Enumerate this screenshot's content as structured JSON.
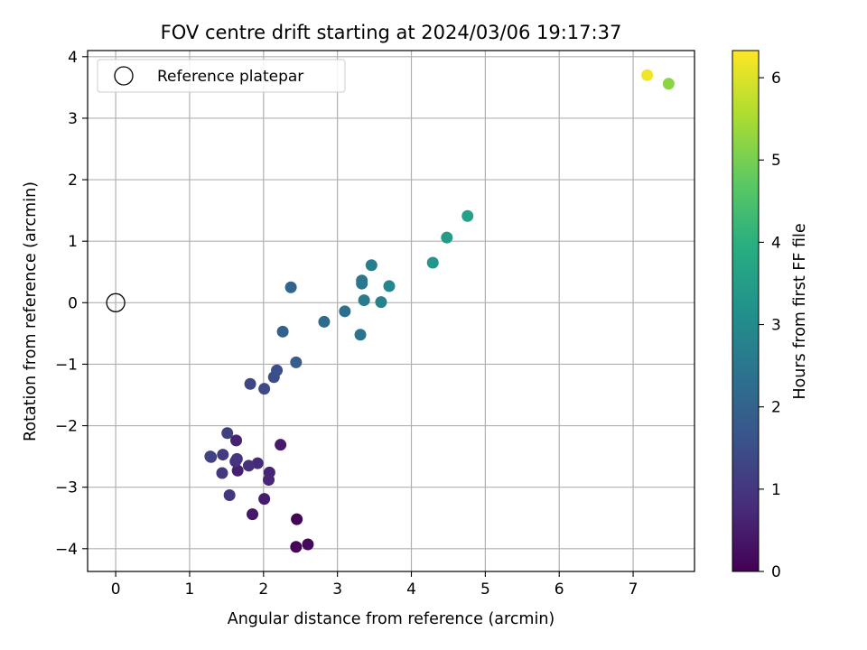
{
  "chart_data": {
    "type": "scatter",
    "title": "FOV centre drift starting at 2024/03/06 19:17:37",
    "xlabel": "Angular distance from reference (arcmin)",
    "ylabel": "Rotation from reference (arcmin)",
    "xlim": [
      -0.38,
      7.83
    ],
    "ylim": [
      -4.37,
      4.1
    ],
    "xticks": [
      0,
      1,
      2,
      3,
      4,
      5,
      6,
      7
    ],
    "yticks": [
      -4,
      -3,
      -2,
      -1,
      0,
      1,
      2,
      3,
      4
    ],
    "grid": true,
    "legend": {
      "placement": "top-left",
      "entries": [
        {
          "label": "Reference platepar",
          "marker": "hollow-circle",
          "color": "#000000"
        }
      ]
    },
    "reference_point": {
      "x": 0,
      "y": 0
    },
    "colorbar": {
      "label": "Hours from first FF file",
      "colormap": "viridis",
      "range": [
        0,
        6.33
      ],
      "ticks": [
        0,
        1,
        2,
        3,
        4,
        5,
        6
      ]
    },
    "points": [
      {
        "x": 2.45,
        "y": -3.52,
        "c": 0.05
      },
      {
        "x": 2.44,
        "y": -3.97,
        "c": 0.08
      },
      {
        "x": 2.6,
        "y": -3.93,
        "c": 0.15
      },
      {
        "x": 1.85,
        "y": -3.44,
        "c": 0.4
      },
      {
        "x": 2.23,
        "y": -2.31,
        "c": 0.45
      },
      {
        "x": 2.01,
        "y": -3.19,
        "c": 0.5
      },
      {
        "x": 1.65,
        "y": -2.73,
        "c": 0.55
      },
      {
        "x": 1.63,
        "y": -2.24,
        "c": 0.6
      },
      {
        "x": 2.08,
        "y": -2.76,
        "c": 0.65
      },
      {
        "x": 2.07,
        "y": -2.88,
        "c": 0.7
      },
      {
        "x": 1.92,
        "y": -2.61,
        "c": 0.75
      },
      {
        "x": 1.8,
        "y": -2.65,
        "c": 0.85
      },
      {
        "x": 1.62,
        "y": -2.58,
        "c": 0.9
      },
      {
        "x": 1.64,
        "y": -2.54,
        "c": 0.95
      },
      {
        "x": 1.54,
        "y": -3.13,
        "c": 1.0
      },
      {
        "x": 1.44,
        "y": -2.77,
        "c": 1.05
      },
      {
        "x": 1.45,
        "y": -2.47,
        "c": 1.1
      },
      {
        "x": 1.51,
        "y": -2.12,
        "c": 1.15
      },
      {
        "x": 1.28,
        "y": -2.5,
        "c": 1.2
      },
      {
        "x": 1.29,
        "y": -2.51,
        "c": 1.25
      },
      {
        "x": 1.82,
        "y": -1.32,
        "c": 1.3
      },
      {
        "x": 2.01,
        "y": -1.4,
        "c": 1.4
      },
      {
        "x": 2.14,
        "y": -1.21,
        "c": 1.5
      },
      {
        "x": 2.18,
        "y": -1.1,
        "c": 1.55
      },
      {
        "x": 2.44,
        "y": -0.97,
        "c": 1.85
      },
      {
        "x": 2.26,
        "y": -0.47,
        "c": 1.95
      },
      {
        "x": 2.37,
        "y": 0.25,
        "c": 2.05
      },
      {
        "x": 2.82,
        "y": -0.31,
        "c": 2.2
      },
      {
        "x": 3.1,
        "y": -0.14,
        "c": 2.3
      },
      {
        "x": 3.31,
        "y": -0.52,
        "c": 2.4
      },
      {
        "x": 3.33,
        "y": 0.36,
        "c": 2.45
      },
      {
        "x": 3.33,
        "y": 0.31,
        "c": 2.5
      },
      {
        "x": 3.36,
        "y": 0.04,
        "c": 2.6
      },
      {
        "x": 3.46,
        "y": 0.61,
        "c": 2.7
      },
      {
        "x": 3.59,
        "y": 0.01,
        "c": 2.8
      },
      {
        "x": 3.7,
        "y": 0.27,
        "c": 2.9
      },
      {
        "x": 4.29,
        "y": 0.65,
        "c": 3.3
      },
      {
        "x": 4.48,
        "y": 1.06,
        "c": 3.5
      },
      {
        "x": 4.76,
        "y": 1.41,
        "c": 3.6
      },
      {
        "x": 7.48,
        "y": 3.56,
        "c": 5.2
      },
      {
        "x": 7.19,
        "y": 3.7,
        "c": 6.2
      }
    ]
  }
}
